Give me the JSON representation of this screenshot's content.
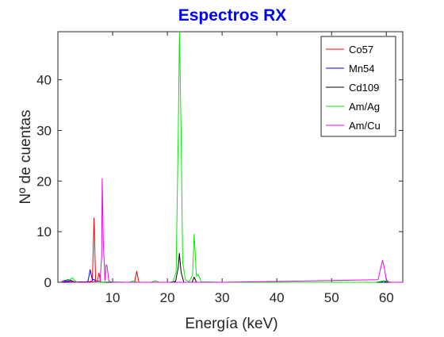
{
  "chart_data": {
    "type": "line",
    "title": "Espectros RX",
    "xlabel": "Energía (keV)",
    "ylabel": "Nº de cuentas",
    "xlim": [
      0,
      63
    ],
    "ylim": [
      0,
      49.5
    ],
    "xticks": [
      10,
      20,
      30,
      40,
      50,
      60
    ],
    "yticks": [
      0,
      10,
      20,
      30,
      40
    ],
    "grid": false,
    "legend_position": "top-right",
    "series": [
      {
        "name": "Co57",
        "color": "#ff0000",
        "x": [
          0.5,
          1.0,
          1.5,
          2.0,
          2.5,
          3.0,
          5.5,
          6.3,
          6.6,
          6.9,
          7.2,
          7.5,
          7.8,
          8.2,
          14.0,
          14.4,
          14.8,
          20.0,
          30.0,
          45.0,
          60.0,
          63.0
        ],
        "y": [
          0.0,
          0.2,
          0.4,
          0.3,
          0.1,
          0.0,
          0.0,
          0.3,
          12.7,
          0.4,
          0.2,
          1.8,
          0.1,
          0.0,
          0.0,
          2.2,
          0.0,
          0.0,
          0.0,
          0.0,
          0.0,
          0.0
        ]
      },
      {
        "name": "Mn54",
        "color": "#0000ff",
        "x": [
          0.5,
          1.0,
          2.0,
          5.0,
          5.5,
          5.9,
          6.3,
          6.6,
          7.0,
          10.0,
          20.0,
          40.0,
          63.0
        ],
        "y": [
          0.0,
          0.1,
          0.1,
          0.0,
          0.2,
          2.5,
          0.4,
          0.6,
          0.0,
          0.0,
          0.0,
          0.0,
          0.0
        ]
      },
      {
        "name": "Cd109",
        "color": "#000000",
        "x": [
          0.5,
          1.0,
          2.0,
          3.0,
          10.0,
          20.5,
          21.5,
          22.0,
          22.2,
          22.5,
          23.0,
          24.5,
          24.9,
          25.3,
          26.0,
          40.0,
          59.0,
          59.5,
          60.0,
          63.0
        ],
        "y": [
          0.0,
          0.3,
          0.5,
          0.1,
          0.0,
          0.0,
          0.2,
          3.0,
          5.7,
          2.0,
          0.0,
          0.0,
          1.0,
          0.0,
          0.0,
          0.0,
          0.0,
          0.3,
          0.0,
          0.0
        ]
      },
      {
        "name": "Am/Ag",
        "color": "#00ee00",
        "x": [
          0.5,
          1.0,
          2.0,
          2.7,
          3.0,
          3.4,
          4.0,
          8.0,
          9.0,
          13.0,
          13.9,
          14.5,
          17.0,
          17.8,
          18.5,
          21.0,
          21.6,
          22.0,
          22.2,
          22.5,
          22.8,
          23.3,
          24.0,
          24.6,
          24.9,
          25.3,
          25.6,
          26.2,
          30.0,
          58.0,
          59.5,
          61.0,
          63.0
        ],
        "y": [
          0.0,
          0.2,
          0.4,
          0.9,
          0.4,
          0.1,
          0.0,
          0.0,
          0.1,
          0.0,
          0.3,
          0.0,
          0.0,
          0.3,
          0.0,
          0.0,
          2.0,
          30.0,
          49.5,
          30.0,
          4.0,
          0.5,
          0.1,
          1.5,
          9.5,
          1.2,
          1.6,
          0.1,
          0.0,
          0.0,
          0.3,
          0.0,
          0.0
        ]
      },
      {
        "name": "Am/Cu",
        "color": "#ee00ee",
        "x": [
          0.5,
          1.0,
          2.0,
          3.0,
          6.0,
          7.7,
          8.0,
          8.1,
          8.3,
          8.6,
          8.8,
          9.0,
          9.3,
          9.6,
          10.0,
          14.0,
          30.0,
          58.5,
          59.0,
          59.3,
          59.6,
          60.0,
          60.5,
          63.0
        ],
        "y": [
          0.0,
          0.3,
          0.2,
          0.0,
          0.0,
          0.3,
          5.0,
          20.5,
          8.0,
          0.3,
          3.5,
          3.2,
          0.3,
          0.1,
          0.0,
          0.0,
          0.0,
          0.5,
          3.0,
          4.3,
          3.0,
          0.5,
          0.0,
          0.0
        ]
      }
    ]
  }
}
